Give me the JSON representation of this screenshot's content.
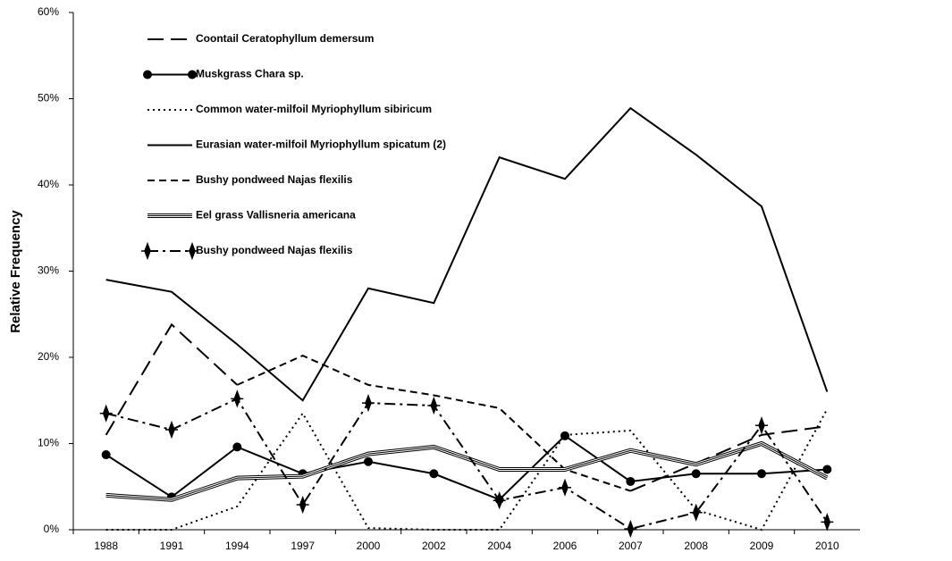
{
  "chart_data": {
    "type": "line",
    "y_label": "Relative Frequency",
    "categories": [
      "1988",
      "1991",
      "1994",
      "1997",
      "2000",
      "2002",
      "2004",
      "2006",
      "2007",
      "2008",
      "2009",
      "2010"
    ],
    "ylim": [
      0,
      60
    ],
    "yticks": [
      {
        "value": 0,
        "label": "0%"
      },
      {
        "value": 10,
        "label": "10%"
      },
      {
        "value": 20,
        "label": "20%"
      },
      {
        "value": 30,
        "label": "30%"
      },
      {
        "value": 40,
        "label": "40%"
      },
      {
        "value": 50,
        "label": "50%"
      },
      {
        "value": 60,
        "label": "60%"
      }
    ],
    "grid": false,
    "legend": "top-left",
    "series": [
      {
        "name": "Coontail Ceratophyllum demersum",
        "color": "#000000",
        "style": "long-dash",
        "marker": "none",
        "values": [
          11,
          23.8,
          16.8,
          null,
          null,
          null,
          null,
          null,
          4.5,
          7.7,
          11,
          12
        ]
      },
      {
        "name": "Muskgrass Chara sp.",
        "color": "#000000",
        "style": "solid",
        "marker": "circle",
        "values": [
          8.7,
          3.8,
          9.6,
          6.5,
          7.9,
          6.5,
          3.5,
          10.9,
          5.6,
          6.5,
          6.5,
          7
        ]
      },
      {
        "name": "Common water-milfoil Myriophyllum sibiricum",
        "color": "#000000",
        "style": "dotted",
        "marker": "none",
        "values": [
          0,
          0,
          2.7,
          13.5,
          0.2,
          0,
          0,
          11,
          11.5,
          2.3,
          0,
          14
        ]
      },
      {
        "name": "Eurasian water-milfoil Myriophyllum spicatum (2)",
        "color": "#000000",
        "style": "solid",
        "marker": "none",
        "values": [
          29,
          27.6,
          21.5,
          15,
          28,
          26.3,
          43.2,
          40.7,
          48.9,
          43.5,
          37.5,
          16
        ]
      },
      {
        "name": "Bushy pondweed Najas flexilis",
        "color": "#000000",
        "style": "short-dash",
        "marker": "none",
        "values": [
          null,
          null,
          16.8,
          20.2,
          16.8,
          15.6,
          14.1,
          7,
          4.5,
          null,
          null,
          null
        ]
      },
      {
        "name": "Eel grass Vallisneria americana",
        "color": "#000000",
        "style": "double",
        "marker": "none",
        "values": [
          4,
          3.5,
          6,
          6.2,
          8.8,
          9.6,
          7,
          7,
          9.2,
          7.6,
          10,
          6
        ]
      },
      {
        "name": "Bushy pondweed Najas flexilis",
        "color": "#000000",
        "style": "dash-dot",
        "marker": "diamond",
        "values": [
          13.5,
          11.6,
          15.2,
          2.9,
          14.7,
          14.4,
          3.4,
          4.9,
          0.1,
          2,
          12.1,
          0.9
        ]
      }
    ]
  }
}
